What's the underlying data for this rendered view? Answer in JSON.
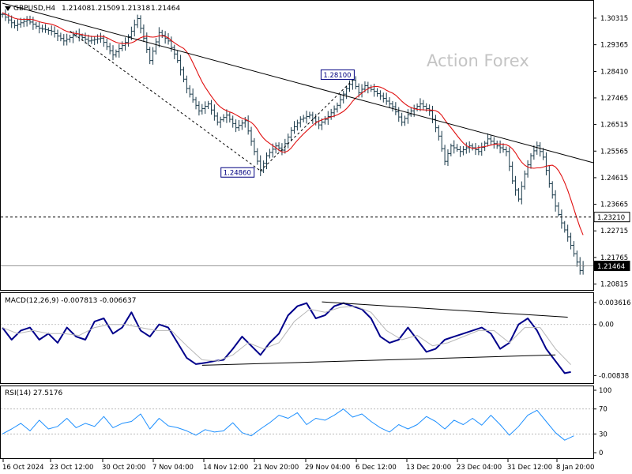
{
  "chart_data": [
    {
      "type": "candlestick",
      "header": {
        "symbol": "GBPUSD,H4",
        "open": "1.21408",
        "high": "1.21509",
        "low": "1.21318",
        "close": "1.21464"
      },
      "watermark": "Action Forex",
      "ylim": [
        1.2069,
        1.3085
      ],
      "y_ticks": [
        "1.30315",
        "1.29365",
        "1.28410",
        "1.27465",
        "1.26515",
        "1.25565",
        "1.24615",
        "1.23665",
        "1.22715",
        "1.21765",
        "1.20815"
      ],
      "x_ticks": [
        "16 Oct 2024",
        "23 Oct 12:00",
        "30 Oct 20:00",
        "7 Nov 04:00",
        "14 Nov 12:00",
        "21 Nov 20:00",
        "29 Nov 04:00",
        "6 Dec 12:00",
        "13 Dec 20:00",
        "23 Dec 04:00",
        "31 Dec 12:00",
        "8 Jan 20:00"
      ],
      "price_path": [
        [
          0,
          1.3045
        ],
        [
          4,
          1.3005
        ],
        [
          8,
          1.3025
        ],
        [
          12,
          1.2995
        ],
        [
          16,
          1.2985
        ],
        [
          20,
          1.295
        ],
        [
          24,
          1.2975
        ],
        [
          28,
          1.295
        ],
        [
          32,
          1.296
        ],
        [
          36,
          1.29
        ],
        [
          40,
          1.2945
        ],
        [
          42,
          1.2985
        ],
        [
          44,
          1.303
        ],
        [
          46,
          1.296
        ],
        [
          48,
          1.288
        ],
        [
          51,
          1.298
        ],
        [
          54,
          1.295
        ],
        [
          57,
          1.288
        ],
        [
          60,
          1.278
        ],
        [
          64,
          1.27
        ],
        [
          67,
          1.2725
        ],
        [
          70,
          1.266
        ],
        [
          73,
          1.2685
        ],
        [
          76,
          1.264
        ],
        [
          79,
          1.2665
        ],
        [
          82,
          1.2555
        ],
        [
          84,
          1.2486
        ],
        [
          86,
          1.254
        ],
        [
          89,
          1.2575
        ],
        [
          91,
          1.256
        ],
        [
          94,
          1.263
        ],
        [
          97,
          1.267
        ],
        [
          100,
          1.2685
        ],
        [
          103,
          1.265
        ],
        [
          106,
          1.268
        ],
        [
          109,
          1.272
        ],
        [
          112,
          1.278
        ],
        [
          114,
          1.281
        ],
        [
          116,
          1.2765
        ],
        [
          118,
          1.279
        ],
        [
          121,
          1.277
        ],
        [
          124,
          1.2745
        ],
        [
          127,
          1.2715
        ],
        [
          130,
          1.266
        ],
        [
          133,
          1.27
        ],
        [
          136,
          1.2725
        ],
        [
          139,
          1.27
        ],
        [
          142,
          1.261
        ],
        [
          144,
          1.252
        ],
        [
          146,
          1.2575
        ],
        [
          149,
          1.2555
        ],
        [
          152,
          1.2575
        ],
        [
          155,
          1.2555
        ],
        [
          158,
          1.26
        ],
        [
          161,
          1.2575
        ],
        [
          164,
          1.2555
        ],
        [
          166,
          1.245
        ],
        [
          168,
          1.2385
        ],
        [
          170,
          1.2475
        ],
        [
          172,
          1.254
        ],
        [
          174,
          1.2575
        ],
        [
          176,
          1.2535
        ],
        [
          178,
          1.244
        ],
        [
          180,
          1.236
        ],
        [
          182,
          1.23
        ],
        [
          184,
          1.225
        ],
        [
          186,
          1.219
        ],
        [
          188,
          1.213
        ],
        [
          189,
          1.2146
        ]
      ],
      "moving_average_color": "#e01010",
      "annotations": [
        {
          "label": "1.28100",
          "value": 1.281,
          "index": 114
        },
        {
          "label": "1.24860",
          "value": 1.2486,
          "index": 84
        }
      ],
      "levels": [
        {
          "label": "1.23210",
          "value": 1.2321,
          "style": "dashed"
        },
        {
          "label": "1.21464",
          "value": 1.21464,
          "style": "current"
        }
      ],
      "trendline": {
        "from": [
          0,
          1.3085
        ],
        "to": [
          192,
          1.2515
        ]
      },
      "channel_dashed": [
        {
          "from": [
            22,
            1.2985
          ],
          "to": [
            84,
            1.2486
          ]
        },
        {
          "from": [
            84,
            1.2486
          ],
          "to": [
            114,
            1.281
          ]
        }
      ]
    },
    {
      "type": "line",
      "title": "MACD(12,26,9) -0.007813 -0.006637",
      "ylim": [
        -0.0095,
        0.0045
      ],
      "y_ticks": [
        "0.003616",
        "0.00",
        "-0.00838"
      ],
      "series": [
        {
          "color": "#00008b",
          "values": [
            [
              0,
              -0.0005
            ],
            [
              3,
              -0.0025
            ],
            [
              6,
              -0.001
            ],
            [
              9,
              -0.0005
            ],
            [
              12,
              -0.0025
            ],
            [
              15,
              -0.0015
            ],
            [
              18,
              -0.003
            ],
            [
              21,
              -0.0005
            ],
            [
              24,
              -0.002
            ],
            [
              27,
              -0.0025
            ],
            [
              30,
              0.0005
            ],
            [
              33,
              0.001
            ],
            [
              36,
              -0.0015
            ],
            [
              39,
              -0.0005
            ],
            [
              42,
              0.002
            ],
            [
              45,
              -0.001
            ],
            [
              48,
              -0.002
            ],
            [
              51,
              0.0
            ],
            [
              54,
              -0.0005
            ],
            [
              57,
              -0.003
            ],
            [
              60,
              -0.0055
            ],
            [
              63,
              -0.0065
            ],
            [
              66,
              -0.0063
            ],
            [
              69,
              -0.006
            ],
            [
              72,
              -0.0058
            ],
            [
              75,
              -0.004
            ],
            [
              78,
              -0.002
            ],
            [
              81,
              -0.0035
            ],
            [
              84,
              -0.005
            ],
            [
              87,
              -0.003
            ],
            [
              90,
              -0.0015
            ],
            [
              93,
              0.0015
            ],
            [
              96,
              0.003
            ],
            [
              99,
              0.0035
            ],
            [
              102,
              0.001
            ],
            [
              105,
              0.0015
            ],
            [
              108,
              0.003
            ],
            [
              111,
              0.0035
            ],
            [
              114,
              0.003
            ],
            [
              117,
              0.0025
            ],
            [
              120,
              0.001
            ],
            [
              123,
              -0.002
            ],
            [
              126,
              -0.003
            ],
            [
              129,
              -0.0025
            ],
            [
              132,
              -0.0005
            ],
            [
              135,
              -0.0025
            ],
            [
              138,
              -0.0045
            ],
            [
              141,
              -0.004
            ],
            [
              144,
              -0.0025
            ],
            [
              147,
              -0.002
            ],
            [
              150,
              -0.0015
            ],
            [
              153,
              -0.001
            ],
            [
              156,
              -0.0005
            ],
            [
              159,
              -0.0015
            ],
            [
              162,
              -0.004
            ],
            [
              165,
              -0.003
            ],
            [
              168,
              0.0
            ],
            [
              171,
              0.001
            ],
            [
              174,
              -0.001
            ],
            [
              177,
              -0.004
            ],
            [
              180,
              -0.006
            ],
            [
              183,
              -0.008
            ],
            [
              185,
              -0.0078
            ]
          ]
        },
        {
          "color": "#b8b8b8",
          "values": [
            [
              0,
              -0.0005
            ],
            [
              5,
              -0.0015
            ],
            [
              10,
              -0.001
            ],
            [
              15,
              -0.0015
            ],
            [
              20,
              -0.0015
            ],
            [
              25,
              -0.0018
            ],
            [
              30,
              -0.0005
            ],
            [
              35,
              0.0
            ],
            [
              40,
              0.0
            ],
            [
              45,
              -0.0005
            ],
            [
              50,
              -0.001
            ],
            [
              55,
              -0.001
            ],
            [
              60,
              -0.0035
            ],
            [
              65,
              -0.0058
            ],
            [
              70,
              -0.006
            ],
            [
              75,
              -0.005
            ],
            [
              80,
              -0.003
            ],
            [
              85,
              -0.004
            ],
            [
              90,
              -0.003
            ],
            [
              95,
              0.0005
            ],
            [
              100,
              0.0025
            ],
            [
              105,
              0.002
            ],
            [
              110,
              0.0028
            ],
            [
              115,
              0.003
            ],
            [
              120,
              0.002
            ],
            [
              125,
              -0.001
            ],
            [
              130,
              -0.0025
            ],
            [
              135,
              -0.0018
            ],
            [
              140,
              -0.0035
            ],
            [
              145,
              -0.003
            ],
            [
              150,
              -0.002
            ],
            [
              155,
              -0.001
            ],
            [
              160,
              -0.001
            ],
            [
              165,
              -0.003
            ],
            [
              170,
              -0.0005
            ],
            [
              175,
              -0.0005
            ],
            [
              180,
              -0.004
            ],
            [
              185,
              -0.0066
            ]
          ]
        }
      ],
      "trendlines": [
        {
          "from": [
            104,
            0.0037
          ],
          "to": [
            184,
            0.0012
          ]
        },
        {
          "from": [
            65,
            -0.0067
          ],
          "to": [
            180,
            -0.005
          ]
        }
      ]
    },
    {
      "type": "line",
      "title": "RSI(14) 27.5176",
      "ylim": [
        0,
        100
      ],
      "y_ticks": [
        "100",
        "70",
        "30",
        "0"
      ],
      "series": [
        {
          "color": "#1e90ff",
          "values": [
            [
              0,
              30
            ],
            [
              3,
              38
            ],
            [
              6,
              47
            ],
            [
              9,
              35
            ],
            [
              12,
              52
            ],
            [
              15,
              38
            ],
            [
              18,
              42
            ],
            [
              21,
              55
            ],
            [
              24,
              40
            ],
            [
              27,
              47
            ],
            [
              30,
              42
            ],
            [
              33,
              58
            ],
            [
              36,
              40
            ],
            [
              39,
              47
            ],
            [
              42,
              50
            ],
            [
              45,
              62
            ],
            [
              48,
              38
            ],
            [
              51,
              55
            ],
            [
              54,
              43
            ],
            [
              57,
              40
            ],
            [
              60,
              35
            ],
            [
              63,
              28
            ],
            [
              66,
              37
            ],
            [
              69,
              33
            ],
            [
              72,
              35
            ],
            [
              75,
              48
            ],
            [
              78,
              32
            ],
            [
              81,
              27
            ],
            [
              84,
              38
            ],
            [
              87,
              48
            ],
            [
              90,
              60
            ],
            [
              93,
              55
            ],
            [
              96,
              64
            ],
            [
              99,
              45
            ],
            [
              102,
              55
            ],
            [
              105,
              52
            ],
            [
              108,
              60
            ],
            [
              111,
              70
            ],
            [
              114,
              57
            ],
            [
              117,
              62
            ],
            [
              120,
              50
            ],
            [
              123,
              40
            ],
            [
              126,
              33
            ],
            [
              129,
              45
            ],
            [
              132,
              38
            ],
            [
              135,
              45
            ],
            [
              138,
              58
            ],
            [
              141,
              50
            ],
            [
              144,
              38
            ],
            [
              147,
              52
            ],
            [
              150,
              45
            ],
            [
              153,
              55
            ],
            [
              156,
              44
            ],
            [
              159,
              60
            ],
            [
              162,
              45
            ],
            [
              165,
              28
            ],
            [
              168,
              42
            ],
            [
              171,
              60
            ],
            [
              174,
              68
            ],
            [
              177,
              50
            ],
            [
              180,
              32
            ],
            [
              183,
              20
            ],
            [
              186,
              27
            ]
          ]
        }
      ]
    }
  ]
}
